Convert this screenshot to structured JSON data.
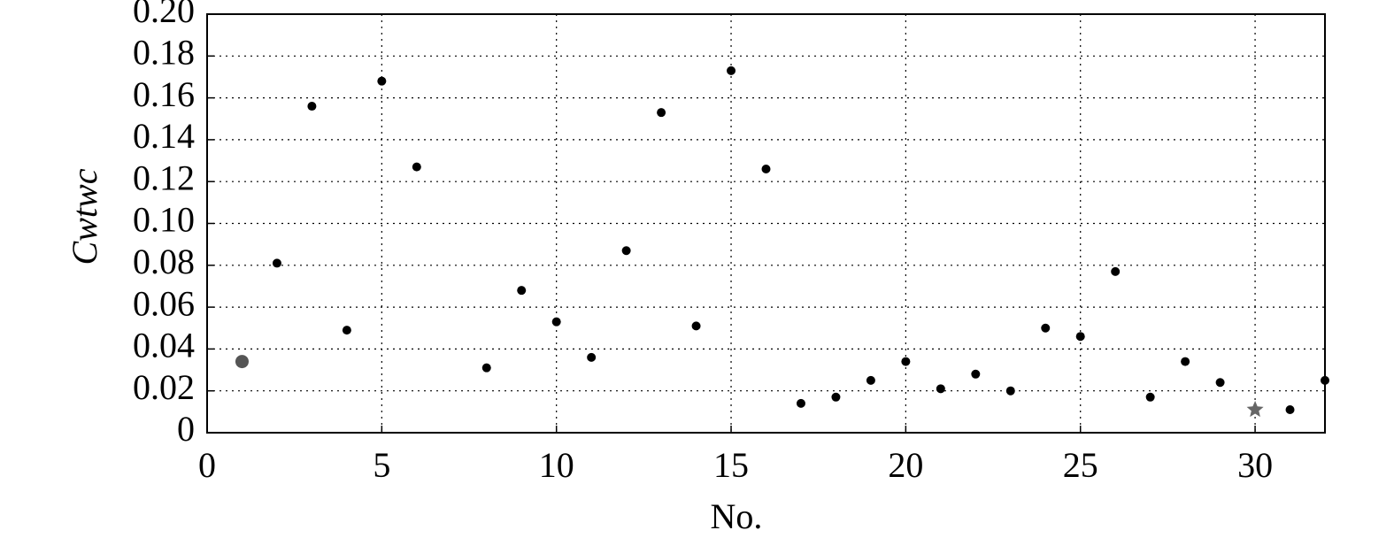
{
  "chart_data": {
    "type": "scatter",
    "x_label": "No.",
    "y_label": "Cwtwc",
    "x": [
      1,
      2,
      3,
      4,
      5,
      6,
      8,
      9,
      10,
      11,
      12,
      13,
      14,
      15,
      16,
      17,
      18,
      19,
      20,
      21,
      22,
      23,
      24,
      25,
      26,
      27,
      28,
      29,
      30,
      31,
      32
    ],
    "values": [
      0.034,
      0.081,
      0.156,
      0.049,
      0.168,
      0.127,
      0.031,
      0.068,
      0.053,
      0.036,
      0.087,
      0.153,
      0.051,
      0.173,
      0.126,
      0.014,
      0.017,
      0.025,
      0.034,
      0.021,
      0.028,
      0.02,
      0.05,
      0.046,
      0.077,
      0.017,
      0.034,
      0.024,
      0.011,
      0.011,
      0.025
    ],
    "colors": [
      "#555555",
      "#000000",
      "#000000",
      "#000000",
      "#000000",
      "#000000",
      "#000000",
      "#000000",
      "#000000",
      "#000000",
      "#000000",
      "#000000",
      "#000000",
      "#000000",
      "#000000",
      "#000000",
      "#000000",
      "#000000",
      "#000000",
      "#000000",
      "#000000",
      "#000000",
      "#000000",
      "#000000",
      "#000000",
      "#000000",
      "#000000",
      "#000000",
      "#666666",
      "#000000",
      "#000000"
    ],
    "markers": [
      "big-circle",
      "circle",
      "circle",
      "circle",
      "circle",
      "circle",
      "circle",
      "circle",
      "circle",
      "circle",
      "circle",
      "circle",
      "circle",
      "circle",
      "circle",
      "circle",
      "circle",
      "circle",
      "circle",
      "circle",
      "circle",
      "circle",
      "circle",
      "circle",
      "circle",
      "circle",
      "circle",
      "circle",
      "star",
      "circle",
      "circle"
    ],
    "xlim": [
      0,
      32
    ],
    "xticks": [
      0,
      5,
      10,
      15,
      20,
      25,
      30
    ],
    "ylim": [
      0,
      0.2
    ],
    "yticks": [
      0,
      0.02,
      0.04,
      0.06,
      0.08,
      {
        "value": 0.1,
        "label": "0.10"
      },
      0.12,
      0.14,
      0.16,
      0.18,
      {
        "value": 0.2,
        "label": "0.20"
      }
    ],
    "grid": true
  }
}
